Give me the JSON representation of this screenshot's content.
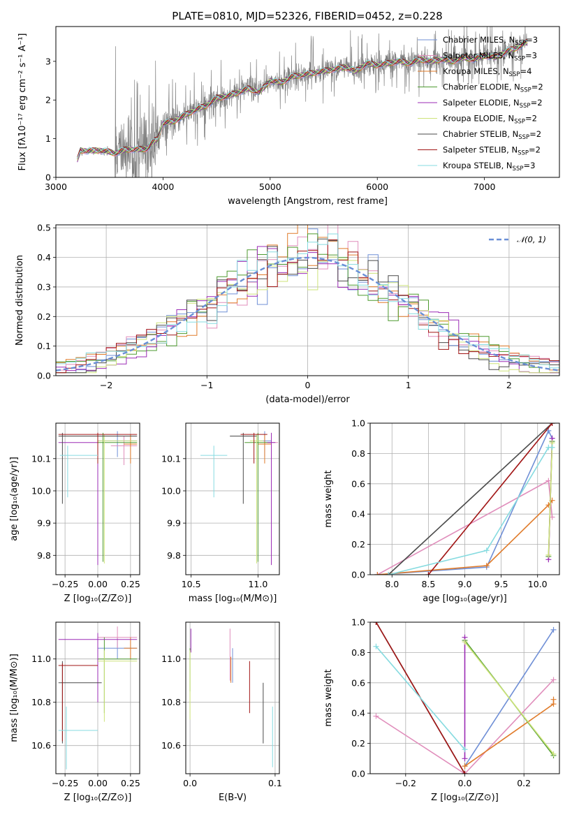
{
  "chart_data": [
    {
      "type": "line",
      "title": "PLATE=0810, MJD=52326, FIBERID=0452, z=0.228",
      "xlabel": "wavelength [Angstrom, rest frame]",
      "ylabel": "Flux [fλ10⁻¹⁷ erg cm⁻² s⁻¹ A⁻¹]",
      "xlim": [
        3000,
        7700
      ],
      "ylim": [
        0,
        3.9
      ],
      "xticks": [
        3000,
        4000,
        5000,
        6000,
        7000
      ],
      "yticks": [
        0,
        1,
        2,
        3
      ],
      "grid": false,
      "legend_position": "top-right",
      "data_series": {
        "name": "data",
        "color": "#808080"
      },
      "models": [
        {
          "name": "Chabrier MILES, Nₛₛₚ=3",
          "label_main": "Chabrier MILES, N",
          "label_sub": "SSP",
          "label_end": "=3",
          "color": "#6f8fd6"
        },
        {
          "name": "Salpeter MILES, Nₛₛₚ=3",
          "label_main": "Salpeter MILES, N",
          "label_sub": "SSP",
          "label_end": "=3",
          "color": "#e08dbb"
        },
        {
          "name": "Kroupa MILES, Nₛₛₚ=4",
          "label_main": "Kroupa MILES, N",
          "label_sub": "SSP",
          "label_end": "=4",
          "color": "#e07b2a"
        },
        {
          "name": "Chabrier ELODIE, Nₛₛₚ=2",
          "label_main": "Chabrier ELODIE, N",
          "label_sub": "SSP",
          "label_end": "=2",
          "color": "#4d9a2f"
        },
        {
          "name": "Salpeter ELODIE, Nₛₛₚ=2",
          "label_main": "Salpeter ELODIE, N",
          "label_sub": "SSP",
          "label_end": "=2",
          "color": "#9b2bb5"
        },
        {
          "name": "Kroupa ELODIE, Nₛₛₚ=2",
          "label_main": "Kroupa ELODIE, N",
          "label_sub": "SSP",
          "label_end": "=2",
          "color": "#cde37a"
        },
        {
          "name": "Chabrier STELIB, Nₛₛₚ=2",
          "label_main": "Chabrier STELIB, N",
          "label_sub": "SSP",
          "label_end": "=2",
          "color": "#4a4a4a"
        },
        {
          "name": "Salpeter STELIB, Nₛₛₚ=2",
          "label_main": "Salpeter STELIB, N",
          "label_sub": "SSP",
          "label_end": "=2",
          "color": "#a11515"
        },
        {
          "name": "Kroupa STELIB, Nₛₛₚ=3",
          "label_main": "Kroupa STELIB, N",
          "label_sub": "SSP",
          "label_end": "=3",
          "color": "#86dbe0"
        }
      ],
      "continuum": {
        "x": [
          3200,
          3230,
          3300,
          3400,
          3500,
          3550,
          3650,
          3750,
          3850,
          3900,
          3950,
          4000,
          4100,
          4200,
          4300,
          4400,
          4500,
          4600,
          4700,
          4800,
          4900,
          5000,
          5100,
          5200,
          5300,
          5400,
          5500,
          5600,
          5700,
          5800,
          5900,
          6000,
          6100,
          6200,
          6300,
          6400,
          6500,
          6600,
          6700,
          6800,
          6900,
          7000,
          7100,
          7200,
          7300,
          7400
        ],
        "y": [
          0.45,
          0.7,
          0.68,
          0.7,
          0.66,
          0.62,
          0.72,
          0.72,
          0.74,
          0.9,
          1.0,
          1.4,
          1.45,
          1.6,
          1.75,
          1.85,
          2.05,
          2.1,
          2.2,
          2.3,
          2.2,
          2.5,
          2.45,
          2.6,
          2.65,
          2.7,
          2.75,
          2.8,
          2.85,
          2.75,
          2.95,
          2.9,
          2.95,
          3.0,
          2.95,
          3.05,
          3.0,
          3.05,
          3.0,
          3.1,
          3.05,
          3.15,
          3.1,
          3.25,
          3.35,
          3.5
        ]
      }
    },
    {
      "type": "histogram",
      "xlabel": "(data-model)/error",
      "ylabel": "Normed distribution",
      "xlim": [
        -2.5,
        2.5
      ],
      "ylim": [
        0,
        0.51
      ],
      "xticks": [
        -2,
        -1,
        0,
        1,
        2
      ],
      "yticks": [
        0.0,
        0.1,
        0.2,
        0.3,
        0.4,
        0.5
      ],
      "grid": true,
      "legend": [
        {
          "name": "𝒩(0, 1)",
          "text_main": "𝒩(0, 1)",
          "color": "#6a8fd6",
          "style": "dashed"
        }
      ],
      "legend_position": "top-right",
      "bin_width": 0.1,
      "bin_start": -2.5,
      "reference_curve": "normal pdf, mean 0, sigma 1"
    },
    {
      "type": "scatter",
      "xlabel": "Z [log₁₀(Z/Z⊙)]",
      "ylabel": "age  [log₁₀(age/yr)]",
      "xlim": [
        -0.32,
        0.32
      ],
      "ylim": [
        9.74,
        10.21
      ],
      "xticks": [
        -0.25,
        0.0,
        0.25
      ],
      "yticks": [
        9.8,
        9.9,
        10.0,
        10.1
      ],
      "grid": true,
      "points": [
        {
          "model": "Chabrier MILES",
          "x": 0.15,
          "y": 10.155,
          "xerr": [
            0.15,
            0.15
          ],
          "yerr": [
            0.05,
            0.03
          ]
        },
        {
          "model": "Salpeter MILES",
          "x": 0.2,
          "y": 10.14,
          "xerr": [
            0.1,
            0.1
          ],
          "yerr": [
            0.06,
            0.03
          ]
        },
        {
          "model": "Kroupa MILES",
          "x": 0.25,
          "y": 10.145,
          "xerr": [
            0.05,
            0.05
          ],
          "yerr": [
            0.06,
            0.03
          ]
        },
        {
          "model": "Chabrier ELODIE",
          "x": 0.04,
          "y": 10.15,
          "xerr": [
            0.04,
            0.26
          ],
          "yerr": [
            0.37,
            0.03
          ]
        },
        {
          "model": "Salpeter ELODIE",
          "x": 0.0,
          "y": 10.15,
          "xerr": [
            0.3,
            0.0
          ],
          "yerr": [
            0.38,
            0.03
          ]
        },
        {
          "model": "Kroupa ELODIE",
          "x": 0.05,
          "y": 10.155,
          "xerr": [
            0.05,
            0.25
          ],
          "yerr": [
            0.38,
            0.02
          ]
        },
        {
          "model": "Chabrier STELIB",
          "x": -0.27,
          "y": 10.17,
          "xerr": [
            0.03,
            0.57
          ],
          "yerr": [
            0.21,
            0.01
          ]
        },
        {
          "model": "Salpeter STELIB",
          "x": 0.0,
          "y": 10.175,
          "xerr": [
            0.3,
            0.3
          ],
          "yerr": [
            0.09,
            0.005
          ]
        },
        {
          "model": "Kroupa STELIB",
          "x": -0.23,
          "y": 10.11,
          "xerr": [
            0.06,
            0.23
          ],
          "yerr": [
            0.13,
            0.03
          ]
        }
      ]
    },
    {
      "type": "scatter",
      "xlabel": "mass [log₁₀(M/M⊙)]",
      "ylabel": "",
      "xlim": [
        10.46,
        11.16
      ],
      "ylim": [
        9.74,
        10.21
      ],
      "xticks": [
        10.5,
        11.0
      ],
      "yticks": [
        9.8,
        9.9,
        10.0,
        10.1
      ],
      "grid": true,
      "points": [
        {
          "model": "Chabrier MILES",
          "x": 11.05,
          "y": 10.155,
          "xerr": [
            0.05,
            0.05
          ],
          "yerr": [
            0.05,
            0.03
          ]
        },
        {
          "model": "Salpeter MILES",
          "x": 11.1,
          "y": 10.15,
          "xerr": [
            0.05,
            0.05
          ],
          "yerr": [
            0.06,
            0.03
          ]
        },
        {
          "model": "Kroupa MILES",
          "x": 11.05,
          "y": 10.145,
          "xerr": [
            0.05,
            0.05
          ],
          "yerr": [
            0.06,
            0.03
          ]
        },
        {
          "model": "Chabrier ELODIE",
          "x": 11.0,
          "y": 10.15,
          "xerr": [
            0.1,
            0.1
          ],
          "yerr": [
            0.37,
            0.03
          ]
        },
        {
          "model": "Salpeter ELODIE",
          "x": 11.1,
          "y": 10.15,
          "xerr": [
            0.03,
            0.03
          ],
          "yerr": [
            0.38,
            0.03
          ]
        },
        {
          "model": "Kroupa ELODIE",
          "x": 10.99,
          "y": 10.155,
          "xerr": [
            0.05,
            0.05
          ],
          "yerr": [
            0.38,
            0.02
          ]
        },
        {
          "model": "Chabrier STELIB",
          "x": 10.89,
          "y": 10.17,
          "xerr": [
            0.1,
            0.1
          ],
          "yerr": [
            0.21,
            0.01
          ]
        },
        {
          "model": "Salpeter STELIB",
          "x": 10.97,
          "y": 10.175,
          "xerr": [
            0.1,
            0.1
          ],
          "yerr": [
            0.09,
            0.005
          ]
        },
        {
          "model": "Kroupa STELIB",
          "x": 10.67,
          "y": 10.11,
          "xerr": [
            0.1,
            0.1
          ],
          "yerr": [
            0.13,
            0.03
          ]
        }
      ]
    },
    {
      "type": "line",
      "xlabel": "age  [log₁₀(age/yr)]",
      "ylabel": "mass weight",
      "xlim": [
        7.7,
        10.3
      ],
      "ylim": [
        0,
        1
      ],
      "xticks": [
        8.0,
        8.5,
        9.0,
        9.5,
        10.0
      ],
      "yticks": [
        0.0,
        0.2,
        0.4,
        0.6,
        0.8,
        1.0
      ],
      "grid": true,
      "series": [
        {
          "name": "Chabrier MILES",
          "x": [
            7.8,
            9.3,
            10.15,
            10.2
          ],
          "y": [
            0.0,
            0.05,
            0.95,
            0.9
          ]
        },
        {
          "name": "Salpeter MILES",
          "x": [
            7.8,
            10.15,
            10.2
          ],
          "y": [
            0.0,
            0.62,
            0.38
          ]
        },
        {
          "name": "Kroupa MILES",
          "x": [
            7.8,
            9.3,
            10.15,
            10.2
          ],
          "y": [
            0.0,
            0.06,
            0.46,
            0.49
          ]
        },
        {
          "name": "Chabrier ELODIE",
          "x": [
            10.15,
            10.2
          ],
          "y": [
            0.12,
            0.88
          ]
        },
        {
          "name": "Salpeter ELODIE",
          "x": [
            10.15,
            10.2
          ],
          "y": [
            0.1,
            0.9
          ]
        },
        {
          "name": "Kroupa ELODIE",
          "x": [
            10.15,
            10.2
          ],
          "y": [
            0.13,
            0.87
          ]
        },
        {
          "name": "Chabrier STELIB",
          "x": [
            7.95,
            10.2
          ],
          "y": [
            0.0,
            1.0
          ]
        },
        {
          "name": "Salpeter STELIB",
          "x": [
            8.5,
            10.2
          ],
          "y": [
            0.0,
            1.0
          ]
        },
        {
          "name": "Kroupa STELIB",
          "x": [
            7.95,
            9.3,
            10.15,
            10.2
          ],
          "y": [
            0.0,
            0.16,
            0.84,
            0.84
          ]
        }
      ]
    },
    {
      "type": "scatter",
      "xlabel": "Z [log₁₀(Z/Z⊙)]",
      "ylabel": "mass [log₁₀(M/M⊙)]",
      "xlim": [
        -0.32,
        0.32
      ],
      "ylim": [
        10.47,
        11.17
      ],
      "xticks": [
        -0.25,
        0.0,
        0.25
      ],
      "yticks": [
        10.6,
        10.8,
        11.0
      ],
      "grid": true,
      "points": [
        {
          "model": "Chabrier MILES",
          "x": 0.15,
          "y": 11.05,
          "xerr": [
            0.15,
            0.15
          ],
          "yerr": [
            0.05,
            0.05
          ]
        },
        {
          "model": "Salpeter MILES",
          "x": 0.15,
          "y": 11.1,
          "xerr": [
            0.15,
            0.15
          ],
          "yerr": [
            0.05,
            0.05
          ]
        },
        {
          "model": "Kroupa MILES",
          "x": 0.25,
          "y": 11.05,
          "xerr": [
            0.05,
            0.05
          ],
          "yerr": [
            0.05,
            0.05
          ]
        },
        {
          "model": "Chabrier ELODIE",
          "x": 0.05,
          "y": 11.0,
          "xerr": [
            0.05,
            0.25
          ],
          "yerr": [
            0.25,
            0.1
          ]
        },
        {
          "model": "Salpeter ELODIE",
          "x": 0.0,
          "y": 11.09,
          "xerr": [
            0.3,
            0.3
          ],
          "yerr": [
            0.29,
            0.03
          ]
        },
        {
          "model": "Kroupa ELODIE",
          "x": 0.05,
          "y": 10.99,
          "xerr": [
            0.05,
            0.25
          ],
          "yerr": [
            0.28,
            0.05
          ]
        },
        {
          "model": "Chabrier STELIB",
          "x": -0.27,
          "y": 10.89,
          "xerr": [
            0.03,
            0.3
          ],
          "yerr": [
            0.28,
            0.1
          ]
        },
        {
          "model": "Salpeter STELIB",
          "x": -0.27,
          "y": 10.97,
          "xerr": [
            0.03,
            0.27
          ],
          "yerr": [
            0.35,
            0.01
          ]
        },
        {
          "model": "Kroupa STELIB",
          "x": -0.24,
          "y": 10.67,
          "xerr": [
            0.06,
            0.24
          ],
          "yerr": [
            0.18,
            0.11
          ]
        }
      ]
    },
    {
      "type": "scatter",
      "xlabel": "E(B-V)",
      "ylabel": "",
      "xlim": [
        -0.005,
        0.105
      ],
      "ylim": [
        10.47,
        11.17
      ],
      "xticks": [
        0.0,
        0.1
      ],
      "yticks": [
        10.6,
        10.8,
        11.0
      ],
      "grid": true,
      "points": [
        {
          "model": "Chabrier MILES",
          "x": 0.05,
          "y": 10.97,
          "xerr": [
            0,
            0
          ],
          "yerr": [
            0.08,
            0.08
          ]
        },
        {
          "model": "Salpeter MILES",
          "x": 0.047,
          "y": 11.0,
          "xerr": [
            0,
            0
          ],
          "yerr": [
            0.1,
            0.14
          ]
        },
        {
          "model": "Kroupa MILES",
          "x": 0.048,
          "y": 10.95,
          "xerr": [
            0,
            0
          ],
          "yerr": [
            0.06,
            0.06
          ]
        },
        {
          "model": "Chabrier ELODIE",
          "x": 0.0,
          "y": 10.95,
          "xerr": [
            0,
            0
          ],
          "yerr": [
            0.1,
            0.1
          ]
        },
        {
          "model": "Salpeter ELODIE",
          "x": 0.001,
          "y": 11.08,
          "xerr": [
            0,
            0
          ],
          "yerr": [
            0.05,
            0.06
          ]
        },
        {
          "model": "Kroupa ELODIE",
          "x": 0.0,
          "y": 10.9,
          "xerr": [
            0,
            0
          ],
          "yerr": [
            0.18,
            0.14
          ]
        },
        {
          "model": "Chabrier STELIB",
          "x": 0.086,
          "y": 10.75,
          "xerr": [
            0,
            0
          ],
          "yerr": [
            0.14,
            0.14
          ]
        },
        {
          "model": "Salpeter STELIB",
          "x": 0.07,
          "y": 10.87,
          "xerr": [
            0,
            0
          ],
          "yerr": [
            0.12,
            0.12
          ]
        },
        {
          "model": "Kroupa STELIB",
          "x": 0.097,
          "y": 10.64,
          "xerr": [
            0,
            0
          ],
          "yerr": [
            0.14,
            0.14
          ]
        }
      ]
    },
    {
      "type": "line",
      "xlabel": "Z [log₁₀(Z/Z⊙)]",
      "ylabel": "mass weight",
      "xlim": [
        -0.32,
        0.32
      ],
      "ylim": [
        0,
        1
      ],
      "xticks": [
        -0.2,
        0.0,
        0.2
      ],
      "yticks": [
        0.0,
        0.2,
        0.4,
        0.6,
        0.8,
        1.0
      ],
      "grid": true,
      "series": [
        {
          "name": "Chabrier MILES",
          "x": [
            0.0,
            0.3
          ],
          "y": [
            0.05,
            0.95
          ]
        },
        {
          "name": "Salpeter MILES",
          "x": [
            -0.3,
            0.0,
            0.3
          ],
          "y": [
            0.38,
            0.0,
            0.62
          ]
        },
        {
          "name": "Kroupa MILES",
          "x": [
            0.0,
            0.3,
            0.3
          ],
          "y": [
            0.05,
            0.46,
            0.49
          ]
        },
        {
          "name": "Chabrier ELODIE",
          "x": [
            0.0,
            0.3
          ],
          "y": [
            0.88,
            0.12
          ]
        },
        {
          "name": "Salpeter ELODIE",
          "x": [
            0.0,
            0.0
          ],
          "y": [
            0.1,
            0.9
          ]
        },
        {
          "name": "Kroupa ELODIE",
          "x": [
            0.0,
            0.3
          ],
          "y": [
            0.87,
            0.13
          ]
        },
        {
          "name": "Chabrier STELIB",
          "x": [
            -0.3,
            0.0
          ],
          "y": [
            1.0,
            0.0
          ]
        },
        {
          "name": "Salpeter STELIB",
          "x": [
            -0.3,
            0.0
          ],
          "y": [
            1.0,
            0.0
          ]
        },
        {
          "name": "Kroupa STELIB",
          "x": [
            -0.3,
            0.0
          ],
          "y": [
            0.84,
            0.16
          ]
        }
      ]
    }
  ]
}
